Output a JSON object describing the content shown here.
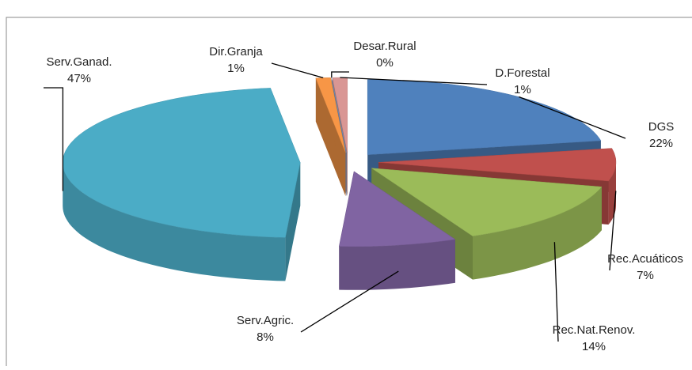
{
  "chart_data": {
    "type": "pie3d",
    "categories": [
      "DGS",
      "Rec.Acuáticos",
      "Rec.Nat.Renov.",
      "Serv.Agric.",
      "Serv.Ganad.",
      "Dir.Granja",
      "Desar.Rural",
      "D.Forestal"
    ],
    "values": [
      22,
      7,
      14,
      8,
      47,
      1,
      0,
      1
    ],
    "value_labels": [
      "22%",
      "7%",
      "14%",
      "8%",
      "47%",
      "1%",
      "0%",
      "1%"
    ],
    "colors": [
      "#4f81bd",
      "#c0504d",
      "#9bbb59",
      "#8064a2",
      "#4bacc6",
      "#f79646",
      "#7f9fd0",
      "#d99694"
    ]
  }
}
